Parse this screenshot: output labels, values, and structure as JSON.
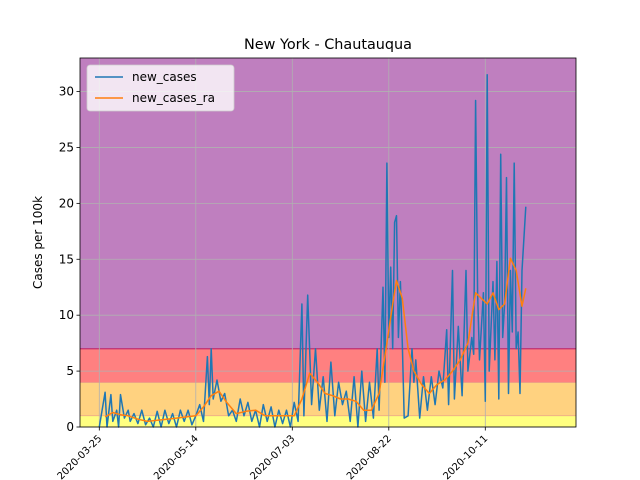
{
  "chart_data": {
    "type": "line",
    "title": "New York - Chautauqua",
    "xlabel": "",
    "ylabel": "Cases per 100k",
    "x_start": "2020-03-15",
    "x_end": "2020-11-27",
    "ylim": [
      0,
      33
    ],
    "yticks": [
      0,
      5,
      10,
      15,
      20,
      25,
      30
    ],
    "xticks": [
      "2020-03-25",
      "2020-05-14",
      "2020-07-03",
      "2020-08-22",
      "2020-10-11"
    ],
    "grid": true,
    "legend_position": "top-left",
    "bands": [
      {
        "from": 0,
        "to": 1,
        "color": "#ffff80"
      },
      {
        "from": 1,
        "to": 4,
        "color": "#ffd280"
      },
      {
        "from": 4,
        "to": 7,
        "color": "#ff8080"
      },
      {
        "from": 7,
        "to": 33,
        "color": "#bf7fbf"
      }
    ],
    "band_edge_color": "#c03070",
    "series": [
      {
        "name": "new_cases",
        "color": "#1f77b4",
        "points": [
          [
            "2020-03-25",
            0
          ],
          [
            "2020-03-28",
            3.1
          ],
          [
            "2020-03-29",
            0
          ],
          [
            "2020-03-31",
            2.9
          ],
          [
            "2020-04-01",
            0.5
          ],
          [
            "2020-04-03",
            1.5
          ],
          [
            "2020-04-04",
            0
          ],
          [
            "2020-04-05",
            2.9
          ],
          [
            "2020-04-07",
            0.8
          ],
          [
            "2020-04-09",
            1.5
          ],
          [
            "2020-04-10",
            0.5
          ],
          [
            "2020-04-12",
            1.2
          ],
          [
            "2020-04-14",
            0.3
          ],
          [
            "2020-04-16",
            1.5
          ],
          [
            "2020-04-18",
            0.2
          ],
          [
            "2020-04-20",
            0.8
          ],
          [
            "2020-04-22",
            0
          ],
          [
            "2020-04-24",
            1.4
          ],
          [
            "2020-04-26",
            0
          ],
          [
            "2020-04-28",
            1.5
          ],
          [
            "2020-04-30",
            0.3
          ],
          [
            "2020-05-02",
            1.2
          ],
          [
            "2020-05-04",
            0
          ],
          [
            "2020-05-06",
            1.5
          ],
          [
            "2020-05-08",
            0.5
          ],
          [
            "2020-05-10",
            1.5
          ],
          [
            "2020-05-12",
            0.2
          ],
          [
            "2020-05-14",
            1.0
          ],
          [
            "2020-05-16",
            2.0
          ],
          [
            "2020-05-18",
            0.5
          ],
          [
            "2020-05-20",
            6.3
          ],
          [
            "2020-05-21",
            2.0
          ],
          [
            "2020-05-22",
            7.0
          ],
          [
            "2020-05-23",
            2.5
          ],
          [
            "2020-05-25",
            4.2
          ],
          [
            "2020-05-27",
            2.3
          ],
          [
            "2020-05-29",
            3.0
          ],
          [
            "2020-05-31",
            1.0
          ],
          [
            "2020-06-02",
            1.5
          ],
          [
            "2020-06-04",
            0.5
          ],
          [
            "2020-06-06",
            2.5
          ],
          [
            "2020-06-08",
            1.0
          ],
          [
            "2020-06-10",
            2.2
          ],
          [
            "2020-06-12",
            0.5
          ],
          [
            "2020-06-14",
            1.5
          ],
          [
            "2020-06-16",
            0
          ],
          [
            "2020-06-18",
            2.0
          ],
          [
            "2020-06-20",
            0.5
          ],
          [
            "2020-06-22",
            1.8
          ],
          [
            "2020-06-24",
            0
          ],
          [
            "2020-06-26",
            1.5
          ],
          [
            "2020-06-28",
            0.3
          ],
          [
            "2020-06-30",
            1.5
          ],
          [
            "2020-07-02",
            0
          ],
          [
            "2020-07-04",
            2.2
          ],
          [
            "2020-07-06",
            0.5
          ],
          [
            "2020-07-08",
            11.0
          ],
          [
            "2020-07-09",
            1.0
          ],
          [
            "2020-07-11",
            11.8
          ],
          [
            "2020-07-13",
            2.0
          ],
          [
            "2020-07-15",
            7.0
          ],
          [
            "2020-07-17",
            1.5
          ],
          [
            "2020-07-19",
            4.5
          ],
          [
            "2020-07-21",
            0.5
          ],
          [
            "2020-07-23",
            5.8
          ],
          [
            "2020-07-25",
            1.0
          ],
          [
            "2020-07-27",
            4.0
          ],
          [
            "2020-07-29",
            2.0
          ],
          [
            "2020-07-31",
            3.2
          ],
          [
            "2020-08-02",
            0.5
          ],
          [
            "2020-08-04",
            4.5
          ],
          [
            "2020-08-06",
            0
          ],
          [
            "2020-08-08",
            5.0
          ],
          [
            "2020-08-10",
            0.5
          ],
          [
            "2020-08-12",
            4.0
          ],
          [
            "2020-08-14",
            0.8
          ],
          [
            "2020-08-16",
            7.0
          ],
          [
            "2020-08-17",
            1.5
          ],
          [
            "2020-08-19",
            12.5
          ],
          [
            "2020-08-20",
            4.0
          ],
          [
            "2020-08-21",
            23.6
          ],
          [
            "2020-08-22",
            8.0
          ],
          [
            "2020-08-23",
            14.3
          ],
          [
            "2020-08-24",
            7.0
          ],
          [
            "2020-08-25",
            18.3
          ],
          [
            "2020-08-26",
            18.9
          ],
          [
            "2020-08-27",
            8.0
          ],
          [
            "2020-08-28",
            13.0
          ],
          [
            "2020-08-29",
            7.5
          ],
          [
            "2020-08-30",
            0.8
          ],
          [
            "2020-09-01",
            1.0
          ],
          [
            "2020-09-03",
            7.0
          ],
          [
            "2020-09-04",
            4.0
          ],
          [
            "2020-09-05",
            6.0
          ],
          [
            "2020-09-07",
            0.8
          ],
          [
            "2020-09-09",
            4.5
          ],
          [
            "2020-09-11",
            1.5
          ],
          [
            "2020-09-13",
            4.5
          ],
          [
            "2020-09-15",
            2.0
          ],
          [
            "2020-09-17",
            5.0
          ],
          [
            "2020-09-19",
            3.5
          ],
          [
            "2020-09-21",
            8.7
          ],
          [
            "2020-09-22",
            2.0
          ],
          [
            "2020-09-24",
            14.0
          ],
          [
            "2020-09-25",
            2.5
          ],
          [
            "2020-09-27",
            9.0
          ],
          [
            "2020-09-29",
            2.8
          ],
          [
            "2020-10-01",
            14.0
          ],
          [
            "2020-10-02",
            5.0
          ],
          [
            "2020-10-04",
            8.0
          ],
          [
            "2020-10-05",
            6.5
          ],
          [
            "2020-10-06",
            29.2
          ],
          [
            "2020-10-07",
            12.0
          ],
          [
            "2020-10-08",
            6.0
          ],
          [
            "2020-10-10",
            12.0
          ],
          [
            "2020-10-11",
            2.3
          ],
          [
            "2020-10-12",
            31.5
          ],
          [
            "2020-10-13",
            5.0
          ],
          [
            "2020-10-15",
            13.0
          ],
          [
            "2020-10-16",
            6.0
          ],
          [
            "2020-10-17",
            14.8
          ],
          [
            "2020-10-18",
            2.5
          ],
          [
            "2020-10-19",
            24.4
          ],
          [
            "2020-10-20",
            8.0
          ],
          [
            "2020-10-21",
            11.0
          ],
          [
            "2020-10-22",
            22.3
          ],
          [
            "2020-10-23",
            3.0
          ],
          [
            "2020-10-24",
            14.0
          ],
          [
            "2020-10-25",
            8.5
          ],
          [
            "2020-10-26",
            23.6
          ],
          [
            "2020-10-27",
            7.0
          ],
          [
            "2020-10-28",
            8.5
          ],
          [
            "2020-10-29",
            3.0
          ],
          [
            "2020-10-30",
            14.0
          ],
          [
            "2020-11-01",
            19.7
          ]
        ]
      },
      {
        "name": "new_cases_ra",
        "color": "#ff7f0e",
        "points": [
          [
            "2020-03-28",
            0.9
          ],
          [
            "2020-04-01",
            1.3
          ],
          [
            "2020-04-05",
            1.1
          ],
          [
            "2020-04-09",
            1.0
          ],
          [
            "2020-04-14",
            0.7
          ],
          [
            "2020-04-19",
            0.5
          ],
          [
            "2020-04-24",
            0.6
          ],
          [
            "2020-04-29",
            0.7
          ],
          [
            "2020-05-04",
            0.8
          ],
          [
            "2020-05-09",
            0.9
          ],
          [
            "2020-05-14",
            1.0
          ],
          [
            "2020-05-18",
            1.8
          ],
          [
            "2020-05-22",
            2.8
          ],
          [
            "2020-05-26",
            3.2
          ],
          [
            "2020-05-30",
            2.2
          ],
          [
            "2020-06-04",
            1.2
          ],
          [
            "2020-06-09",
            1.4
          ],
          [
            "2020-06-14",
            1.5
          ],
          [
            "2020-06-19",
            1.0
          ],
          [
            "2020-06-24",
            1.0
          ],
          [
            "2020-06-29",
            1.0
          ],
          [
            "2020-07-04",
            1.0
          ],
          [
            "2020-07-08",
            2.5
          ],
          [
            "2020-07-12",
            4.8
          ],
          [
            "2020-07-16",
            4.0
          ],
          [
            "2020-07-20",
            3.0
          ],
          [
            "2020-07-24",
            2.8
          ],
          [
            "2020-07-28",
            2.5
          ],
          [
            "2020-08-01",
            2.5
          ],
          [
            "2020-08-05",
            2.3
          ],
          [
            "2020-08-09",
            1.5
          ],
          [
            "2020-08-13",
            1.5
          ],
          [
            "2020-08-17",
            3.0
          ],
          [
            "2020-08-21",
            7.5
          ],
          [
            "2020-08-24",
            11.0
          ],
          [
            "2020-08-26",
            13.1
          ],
          [
            "2020-08-29",
            11.5
          ],
          [
            "2020-09-01",
            7.0
          ],
          [
            "2020-09-04",
            5.0
          ],
          [
            "2020-09-08",
            3.8
          ],
          [
            "2020-09-12",
            3.0
          ],
          [
            "2020-09-16",
            3.8
          ],
          [
            "2020-09-20",
            4.2
          ],
          [
            "2020-09-24",
            5.0
          ],
          [
            "2020-09-28",
            6.0
          ],
          [
            "2020-10-02",
            7.5
          ],
          [
            "2020-10-06",
            12.0
          ],
          [
            "2020-10-09",
            11.5
          ],
          [
            "2020-10-12",
            11.0
          ],
          [
            "2020-10-15",
            12.0
          ],
          [
            "2020-10-18",
            10.5
          ],
          [
            "2020-10-21",
            11.0
          ],
          [
            "2020-10-24",
            15.1
          ],
          [
            "2020-10-27",
            14.0
          ],
          [
            "2020-10-30",
            10.8
          ],
          [
            "2020-11-01",
            12.4
          ]
        ]
      }
    ]
  }
}
